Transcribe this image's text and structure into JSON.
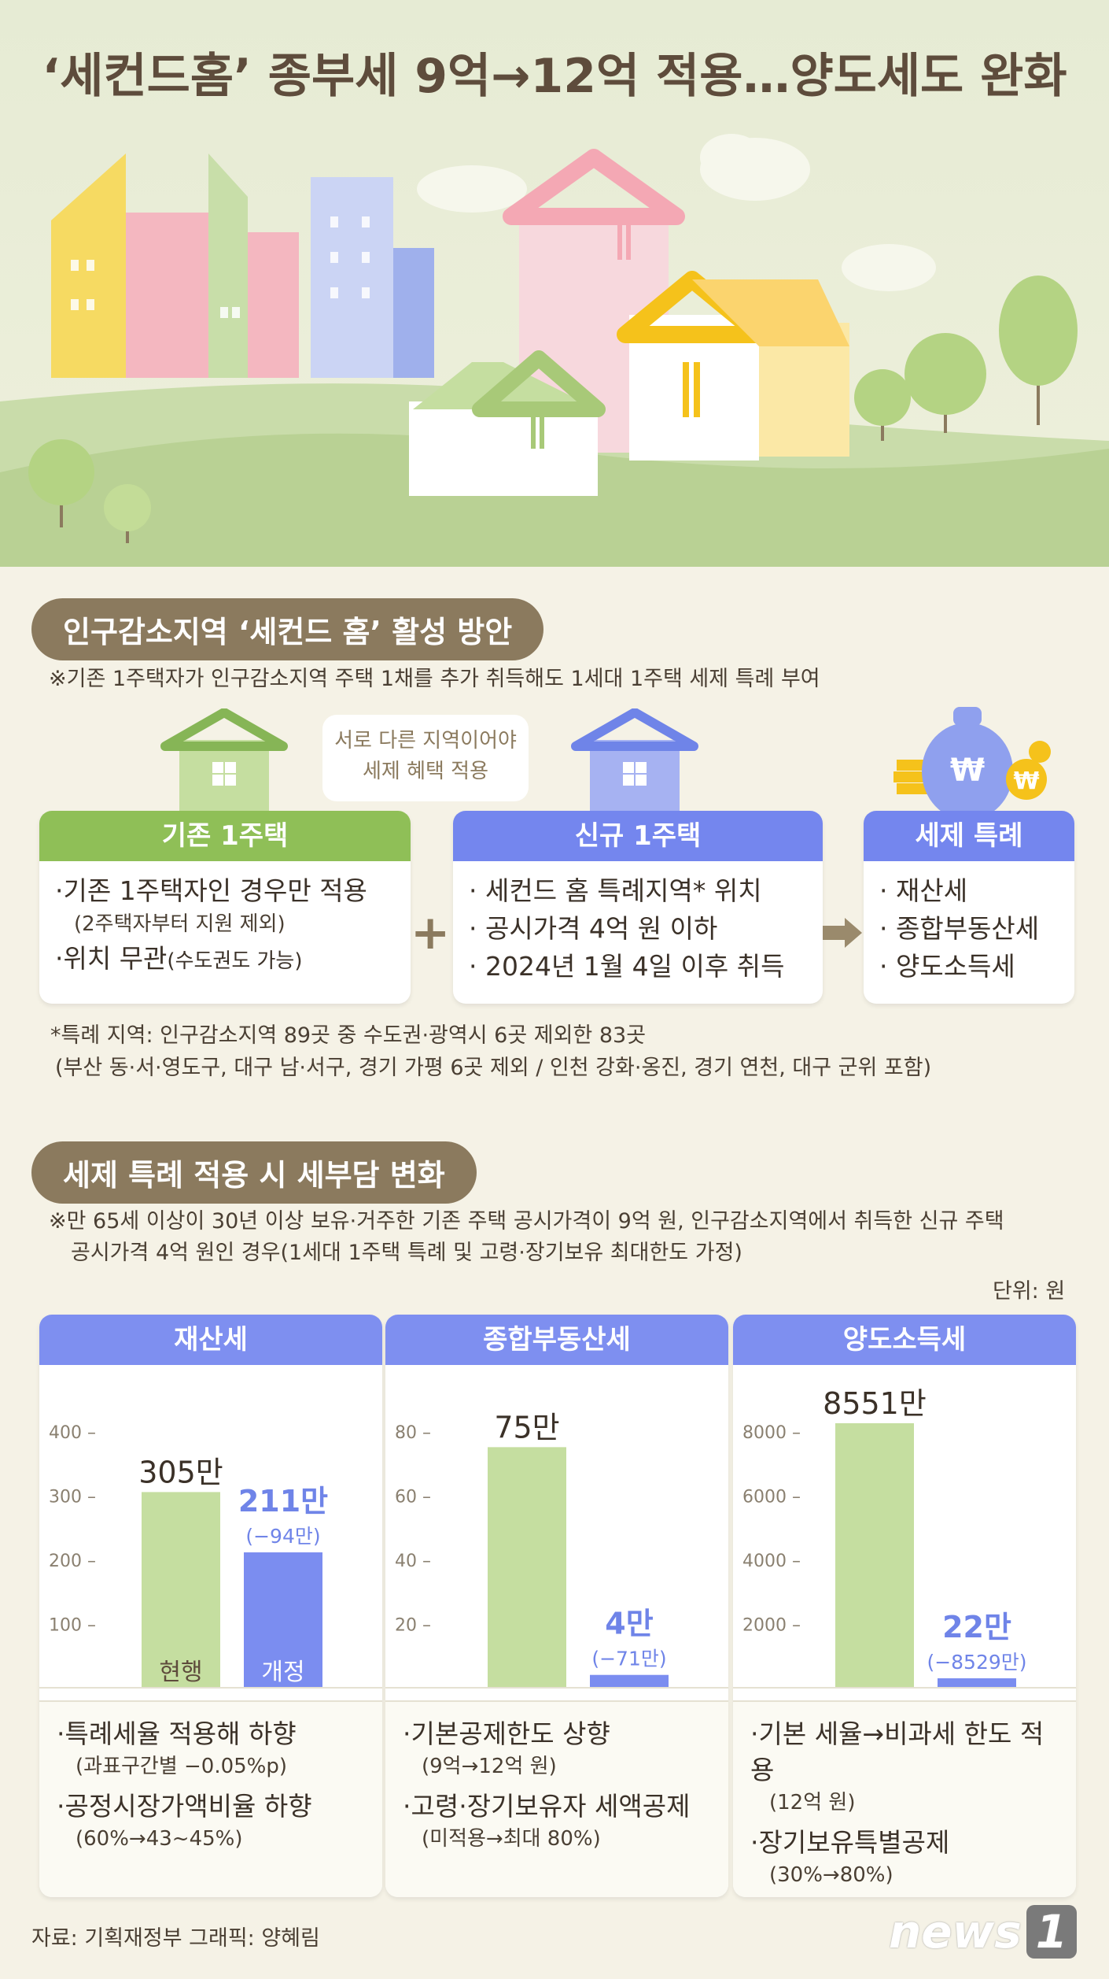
{
  "title": "‘세컨드홈’ 종부세 9억→12억 적용…양도세도 완화",
  "section1": {
    "heading": "인구감소지역 ‘세컨드 홈’ 활성 방안",
    "note": "※기존 1주택자가 인구감소지역 주택 1채를 추가 취득해도 1세대 1주택 세제 특례 부여",
    "speech_line1": "서로 다른 지역이어야",
    "speech_line2": "세제 혜택 적용",
    "card_existing": {
      "title": "기존 1주택",
      "b1": "·기존 1주택자인 경우만 적용",
      "s1": "(2주택자부터 지원 제외)",
      "b2": "·위치 무관",
      "s2": "(수도권도 가능)"
    },
    "card_new": {
      "title": "신규 1주택",
      "b1": "· 세컨드 홈 특례지역* 위치",
      "b2": "· 공시가격 4억 원 이하",
      "b3": "· 2024년 1월 4일 이후 취득"
    },
    "card_benefit": {
      "title": "세제 특례",
      "b1": "· 재산세",
      "b2": "· 종합부동산세",
      "b3": "· 양도소득세"
    },
    "footnote1": "*특례 지역: 인구감소지역 89곳 중 수도권·광역시 6곳 제외한 83곳",
    "footnote2": "(부산 동·서·영도구, 대구 남·서구, 경기 가평 6곳 제외 / 인천 강화·옹진, 경기 연천, 대구 군위 포함)"
  },
  "section2": {
    "heading": "세제 특례 적용 시 세부담 변화",
    "note1": "※만 65세 이상이 30년 이상 보유·거주한 기존 주택 공시가격이 9억 원, 인구감소지역에서 취득한 신규 주택",
    "note2": "공시가격 4억 원인 경우(1세대 1주택 특례 및 고령·장기보유 최대한도 가정)",
    "unit": "단위: 원"
  },
  "chart_data": [
    {
      "type": "bar",
      "title": "재산세",
      "categories": [
        "현행",
        "개정"
      ],
      "values": [
        305,
        211
      ],
      "value_labels": [
        "305만",
        "211만"
      ],
      "diff_label": "(−94만)",
      "yticks": [
        "400",
        "300",
        "200",
        "100"
      ],
      "ylim": [
        0,
        400
      ],
      "colors": [
        "#c5dea0",
        "#7b8df0"
      ],
      "notes": [
        {
          "b": "·특례세율 적용해 하향",
          "s": "(과표구간별 −0.05%p)"
        },
        {
          "b": "·공정시장가액비율 하향",
          "s": "(60%→43~45%)"
        }
      ]
    },
    {
      "type": "bar",
      "title": "종합부동산세",
      "categories": [
        "현행",
        "개정"
      ],
      "values": [
        75,
        4
      ],
      "value_labels": [
        "75만",
        "4만"
      ],
      "diff_label": "(−71만)",
      "yticks": [
        "80",
        "60",
        "40",
        "20"
      ],
      "ylim": [
        0,
        80
      ],
      "colors": [
        "#c5dea0",
        "#7b8df0"
      ],
      "notes": [
        {
          "b": "·기본공제한도 상향",
          "s": "(9억→12억 원)"
        },
        {
          "b": "·고령·장기보유자 세액공제",
          "s": "(미적용→최대 80%)"
        }
      ]
    },
    {
      "type": "bar",
      "title": "양도소득세",
      "categories": [
        "현행",
        "개정"
      ],
      "values": [
        8551,
        22
      ],
      "value_labels": [
        "8551만",
        "22만"
      ],
      "diff_label": "(−8529만)",
      "yticks": [
        "8000",
        "6000",
        "4000",
        "2000"
      ],
      "ylim": [
        0,
        8000
      ],
      "colors": [
        "#c5dea0",
        "#7b8df0"
      ],
      "notes": [
        {
          "b": "·기본 세율→비과세 한도 적용",
          "s": "(12억 원)"
        },
        {
          "b": "·장기보유특별공제",
          "s": "(30%→80%)"
        }
      ]
    }
  ],
  "footer": {
    "source": "자료: 기획재정부  그래픽: 양혜림",
    "logo_text": "news",
    "logo_num": "1"
  }
}
